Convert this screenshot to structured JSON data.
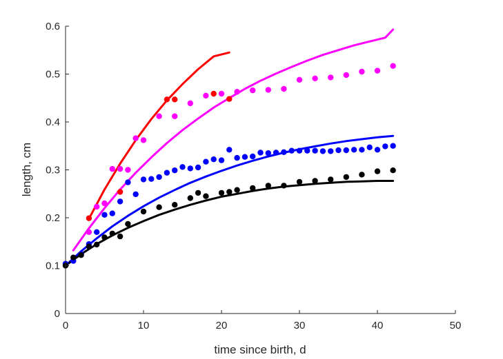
{
  "chart_data": {
    "type": "scatter",
    "title": "",
    "xlabel": "time since birth, d",
    "ylabel": "length, cm",
    "xlim": [
      0,
      50
    ],
    "ylim": [
      0,
      0.6
    ],
    "xticks": [
      0,
      10,
      20,
      30,
      40,
      50
    ],
    "yticks": [
      0,
      0.1,
      0.2,
      0.3,
      0.4,
      0.5,
      0.6
    ],
    "grid": false,
    "legend": "none",
    "series": [
      {
        "color": "#ff0000",
        "points": [
          [
            3,
            0.199
          ],
          [
            7,
            0.254
          ],
          [
            13,
            0.447
          ],
          [
            14,
            0.447
          ],
          [
            19,
            0.459
          ],
          [
            21,
            0.448
          ]
        ],
        "fit": [
          [
            3,
            0.198
          ],
          [
            5,
            0.259
          ],
          [
            7,
            0.313
          ],
          [
            9,
            0.362
          ],
          [
            11,
            0.406
          ],
          [
            13,
            0.445
          ],
          [
            15,
            0.479
          ],
          [
            17,
            0.51
          ],
          [
            19,
            0.537
          ],
          [
            21,
            0.545
          ]
        ]
      },
      {
        "color": "#ff00ff",
        "points": [
          [
            3,
            0.17
          ],
          [
            4,
            0.223
          ],
          [
            5,
            0.23
          ],
          [
            6,
            0.302
          ],
          [
            7,
            0.302
          ],
          [
            8,
            0.3
          ],
          [
            9,
            0.366
          ],
          [
            10,
            0.362
          ],
          [
            12,
            0.412
          ],
          [
            14,
            0.412
          ],
          [
            16,
            0.439
          ],
          [
            18,
            0.455
          ],
          [
            20,
            0.459
          ],
          [
            22,
            0.463
          ],
          [
            24,
            0.466
          ],
          [
            26,
            0.467
          ],
          [
            28,
            0.469
          ],
          [
            30,
            0.488
          ],
          [
            32,
            0.491
          ],
          [
            34,
            0.493
          ],
          [
            36,
            0.498
          ],
          [
            38,
            0.505
          ],
          [
            40,
            0.507
          ],
          [
            42,
            0.517
          ]
        ],
        "fit": [
          [
            1,
            0.132
          ],
          [
            3,
            0.178
          ],
          [
            5,
            0.22
          ],
          [
            7,
            0.259
          ],
          [
            9,
            0.294
          ],
          [
            11,
            0.326
          ],
          [
            13,
            0.356
          ],
          [
            15,
            0.383
          ],
          [
            17,
            0.407
          ],
          [
            19,
            0.43
          ],
          [
            21,
            0.45
          ],
          [
            23,
            0.469
          ],
          [
            25,
            0.486
          ],
          [
            27,
            0.501
          ],
          [
            29,
            0.515
          ],
          [
            31,
            0.528
          ],
          [
            33,
            0.54
          ],
          [
            35,
            0.55
          ],
          [
            37,
            0.56
          ],
          [
            39,
            0.568
          ],
          [
            41,
            0.576
          ],
          [
            42,
            0.593
          ]
        ]
      },
      {
        "color": "#0000ff",
        "points": [
          [
            0,
            0.104
          ],
          [
            1,
            0.11
          ],
          [
            2,
            0.124
          ],
          [
            3,
            0.145
          ],
          [
            4,
            0.17
          ],
          [
            5,
            0.206
          ],
          [
            6,
            0.209
          ],
          [
            7,
            0.234
          ],
          [
            8,
            0.274
          ],
          [
            9,
            0.249
          ],
          [
            10,
            0.28
          ],
          [
            11,
            0.281
          ],
          [
            12,
            0.285
          ],
          [
            13,
            0.294
          ],
          [
            14,
            0.299
          ],
          [
            15,
            0.306
          ],
          [
            16,
            0.303
          ],
          [
            17,
            0.305
          ],
          [
            18,
            0.317
          ],
          [
            19,
            0.322
          ],
          [
            20,
            0.32
          ],
          [
            21,
            0.342
          ],
          [
            22,
            0.325
          ],
          [
            23,
            0.327
          ],
          [
            24,
            0.328
          ],
          [
            25,
            0.336
          ],
          [
            26,
            0.335
          ],
          [
            27,
            0.336
          ],
          [
            28,
            0.337
          ],
          [
            29,
            0.34
          ],
          [
            30,
            0.34
          ],
          [
            31,
            0.34
          ],
          [
            32,
            0.34
          ],
          [
            33,
            0.339
          ],
          [
            34,
            0.339
          ],
          [
            35,
            0.341
          ],
          [
            36,
            0.341
          ],
          [
            37,
            0.342
          ],
          [
            38,
            0.342
          ],
          [
            39,
            0.347
          ],
          [
            40,
            0.342
          ],
          [
            41,
            0.349
          ],
          [
            42,
            0.35
          ]
        ],
        "fit": [
          [
            0,
            0.1
          ],
          [
            2,
            0.13
          ],
          [
            4,
            0.157
          ],
          [
            6,
            0.182
          ],
          [
            8,
            0.204
          ],
          [
            10,
            0.224
          ],
          [
            12,
            0.242
          ],
          [
            14,
            0.258
          ],
          [
            16,
            0.273
          ],
          [
            18,
            0.286
          ],
          [
            20,
            0.298
          ],
          [
            22,
            0.309
          ],
          [
            24,
            0.319
          ],
          [
            26,
            0.328
          ],
          [
            28,
            0.336
          ],
          [
            30,
            0.343
          ],
          [
            32,
            0.349
          ],
          [
            34,
            0.355
          ],
          [
            36,
            0.36
          ],
          [
            38,
            0.364
          ],
          [
            40,
            0.368
          ],
          [
            42,
            0.371
          ]
        ]
      },
      {
        "color": "#000000",
        "points": [
          [
            0,
            0.1
          ],
          [
            1,
            0.117
          ],
          [
            2,
            0.122
          ],
          [
            3,
            0.14
          ],
          [
            4,
            0.144
          ],
          [
            5,
            0.159
          ],
          [
            6,
            0.167
          ],
          [
            7,
            0.161
          ],
          [
            8,
            0.187
          ],
          [
            10,
            0.213
          ],
          [
            12,
            0.222
          ],
          [
            14,
            0.227
          ],
          [
            16,
            0.241
          ],
          [
            17,
            0.252
          ],
          [
            18,
            0.245
          ],
          [
            20,
            0.252
          ],
          [
            21,
            0.254
          ],
          [
            22,
            0.258
          ],
          [
            24,
            0.262
          ],
          [
            26,
            0.267
          ],
          [
            28,
            0.267
          ],
          [
            30,
            0.275
          ],
          [
            32,
            0.277
          ],
          [
            34,
            0.28
          ],
          [
            36,
            0.285
          ],
          [
            38,
            0.29
          ],
          [
            40,
            0.297
          ],
          [
            42,
            0.299
          ]
        ],
        "fit": [
          [
            0,
            0.1
          ],
          [
            2,
            0.124
          ],
          [
            4,
            0.145
          ],
          [
            6,
            0.163
          ],
          [
            8,
            0.179
          ],
          [
            10,
            0.193
          ],
          [
            12,
            0.206
          ],
          [
            14,
            0.217
          ],
          [
            16,
            0.227
          ],
          [
            18,
            0.236
          ],
          [
            20,
            0.244
          ],
          [
            22,
            0.25
          ],
          [
            24,
            0.256
          ],
          [
            26,
            0.261
          ],
          [
            28,
            0.265
          ],
          [
            30,
            0.268
          ],
          [
            32,
            0.271
          ],
          [
            34,
            0.273
          ],
          [
            36,
            0.275
          ],
          [
            38,
            0.276
          ],
          [
            40,
            0.277
          ],
          [
            42,
            0.277
          ]
        ]
      }
    ]
  }
}
